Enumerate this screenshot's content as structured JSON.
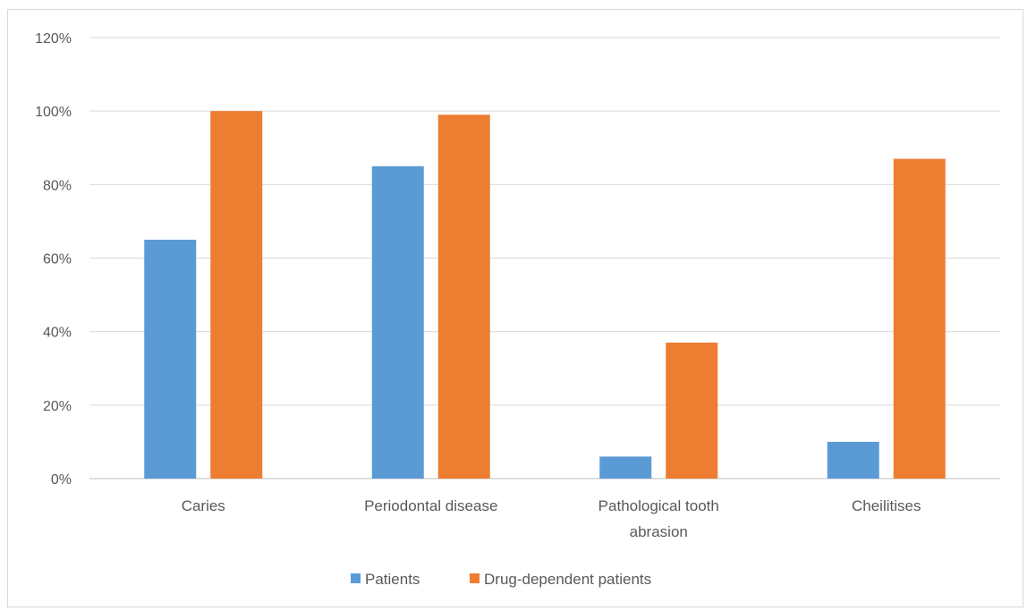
{
  "chart_data": {
    "type": "bar",
    "categories": [
      "Caries",
      "Periodontal disease",
      "Pathological tooth abrasion",
      "Cheilitises"
    ],
    "series": [
      {
        "name": "Patients",
        "values": [
          65,
          85,
          6,
          10
        ],
        "color": "#5b9bd5"
      },
      {
        "name": "Drug-dependent patients",
        "values": [
          100,
          99,
          37,
          87
        ],
        "color": "#ed7d31"
      }
    ],
    "ylim": [
      0,
      120
    ],
    "yticks": [
      0,
      20,
      40,
      60,
      80,
      100,
      120
    ],
    "ytick_labels": [
      "0%",
      "20%",
      "40%",
      "60%",
      "80%",
      "100%",
      "120%"
    ],
    "grid": true,
    "legend": "bottom",
    "title": "",
    "xlabel": "",
    "ylabel": ""
  }
}
